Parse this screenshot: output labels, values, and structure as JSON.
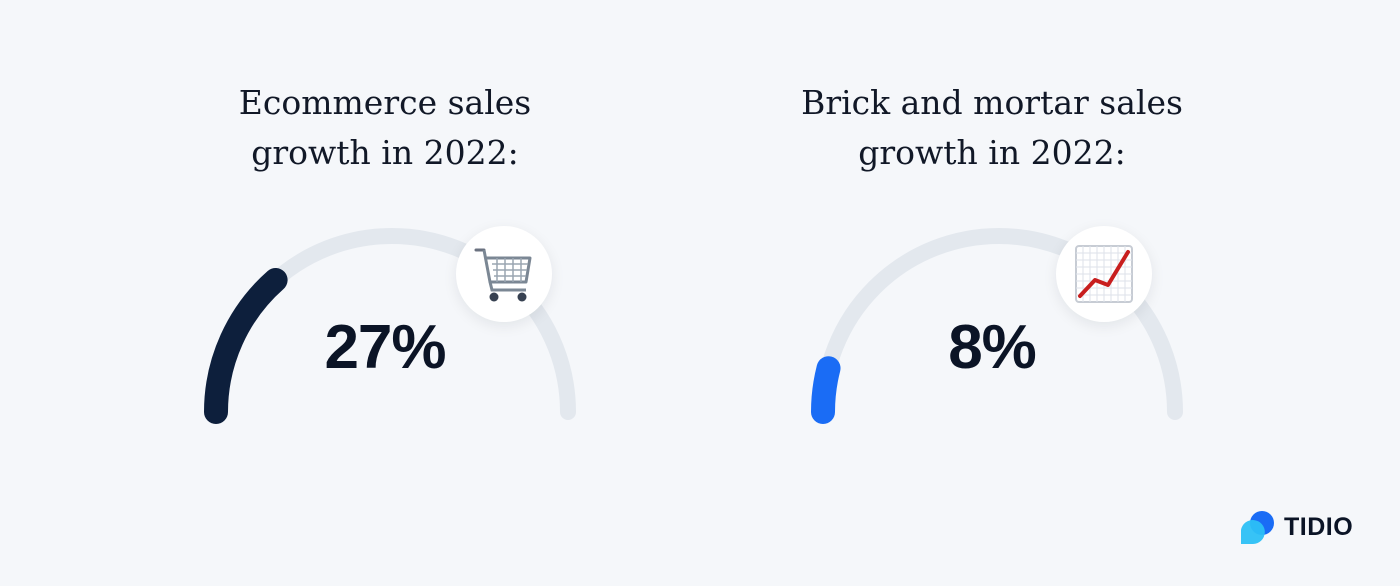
{
  "chart_data": [
    {
      "type": "gauge",
      "title": [
        "Ecommerce sales",
        "growth in 2022:"
      ],
      "value": 27,
      "value_label": "27%",
      "range": [
        0,
        100
      ],
      "color": "#0d1f3c",
      "track_color": "#e3e8ee",
      "icon": "shopping-cart-icon"
    },
    {
      "type": "gauge",
      "title": [
        "Brick and mortar sales",
        "growth in 2022:"
      ],
      "value": 8,
      "value_label": "8%",
      "range": [
        0,
        100
      ],
      "color": "#1a6cf5",
      "track_color": "#e3e8ee",
      "icon": "chart-increasing-icon"
    }
  ],
  "brand": {
    "name": "TIDIO",
    "colors": [
      "#1a6cf5",
      "#2cc0f5"
    ]
  }
}
